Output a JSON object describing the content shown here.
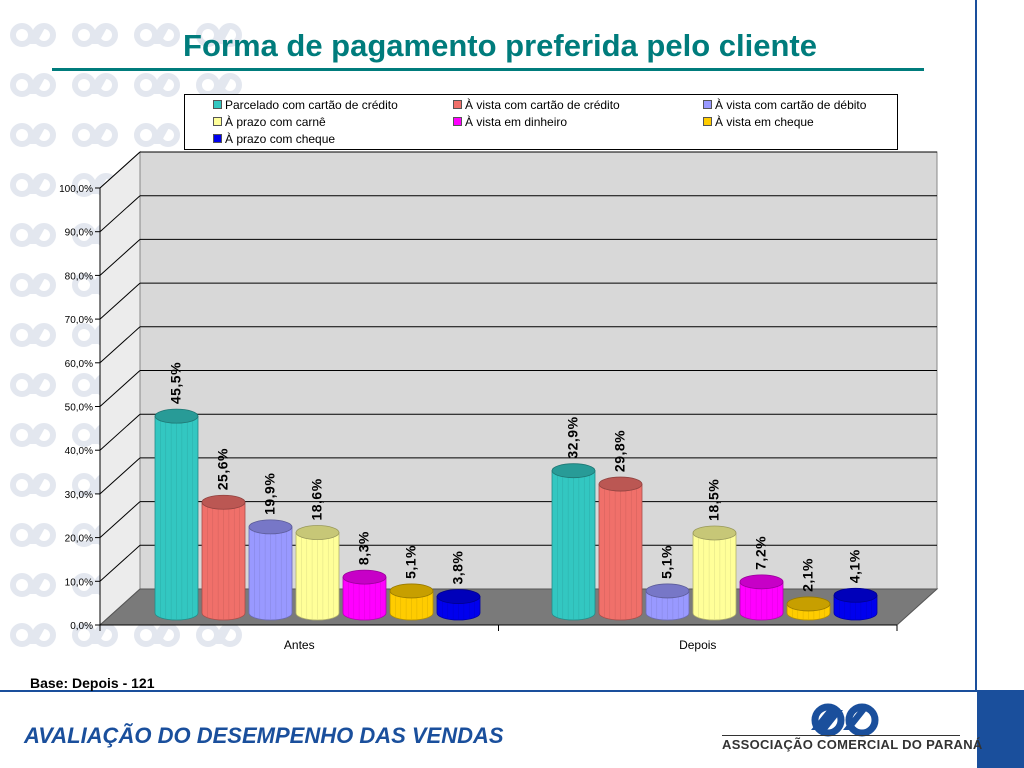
{
  "title": "Forma de pagamento preferida pelo cliente",
  "base_note": "Base:  Depois - 121",
  "footer_title": "AVALIAÇÃO DO DESEMPENHO DAS VENDAS",
  "organization": "ASSOCIAÇÃO COMERCIAL DO PARANÁ",
  "colors": {
    "title": "#007c7c",
    "brand_blue": "#1a4f9c",
    "watermark": "#e3e7ef"
  },
  "chart_data": {
    "type": "bar",
    "categories": [
      "Antes",
      "Depois"
    ],
    "ylim": [
      0,
      100
    ],
    "yticks": [
      "0,0%",
      "10,0%",
      "20,0%",
      "30,0%",
      "40,0%",
      "50,0%",
      "60,0%",
      "70,0%",
      "80,0%",
      "90,0%",
      "100,0%"
    ],
    "grid": true,
    "legend_position": "top",
    "series": [
      {
        "name": "Parcelado com cartão de crédito",
        "color": "#33c7c1",
        "values": [
          45.5,
          32.9
        ],
        "labels": [
          "45,5%",
          "32,9%"
        ]
      },
      {
        "name": "À vista com cartão de crédito",
        "color": "#f0706a",
        "values": [
          25.6,
          29.8
        ],
        "labels": [
          "25,6%",
          "29,8%"
        ]
      },
      {
        "name": "À vista com cartão de débito",
        "color": "#9999ff",
        "values": [
          19.9,
          5.1
        ],
        "labels": [
          "19,9%",
          "5,1%"
        ]
      },
      {
        "name": "À prazo com carnê",
        "color": "#ffff99",
        "values": [
          18.6,
          18.5
        ],
        "labels": [
          "18,6%",
          "18,5%"
        ]
      },
      {
        "name": "À vista em dinheiro",
        "color": "#ff00ff",
        "values": [
          8.3,
          7.2
        ],
        "labels": [
          "8,3%",
          "7,2%"
        ]
      },
      {
        "name": "À vista em cheque",
        "color": "#ffcc00",
        "values": [
          5.1,
          2.1
        ],
        "labels": [
          "5,1%",
          "2,1%"
        ]
      },
      {
        "name": "À prazo com cheque",
        "color": "#0000ee",
        "values": [
          3.8,
          4.1
        ],
        "labels": [
          "3,8%",
          "4,1%"
        ]
      }
    ]
  }
}
